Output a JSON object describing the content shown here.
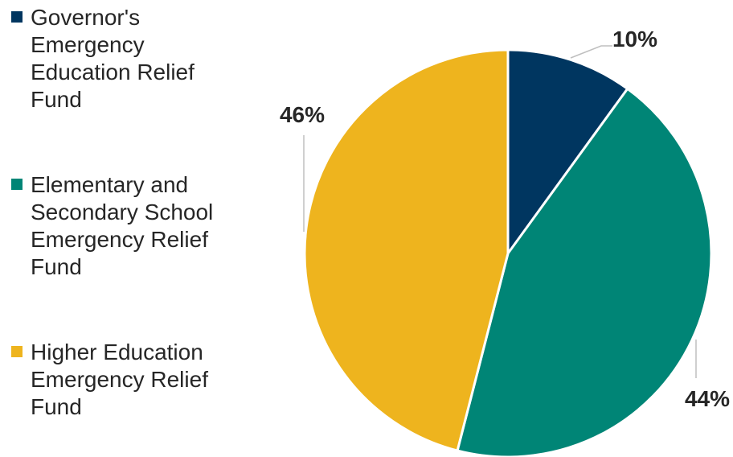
{
  "chart_data": {
    "type": "pie",
    "title": "",
    "legend_position": "left",
    "series": [
      {
        "name": "Governor's Emergency Education Relief Fund",
        "legend_lines": [
          "Governor's",
          "Emergency",
          "Education Relief",
          "Fund"
        ],
        "value": 10,
        "label": "10%",
        "color": "#003660"
      },
      {
        "name": "Elementary and Secondary School Emergency Relief Fund",
        "legend_lines": [
          "Elementary and",
          "Secondary School",
          "Emergency Relief",
          "Fund"
        ],
        "value": 44,
        "label": "44%",
        "color": "#008576"
      },
      {
        "name": "Higher Education Emergency Relief Fund",
        "legend_lines": [
          "Higher Education",
          "Emergency Relief",
          "Fund"
        ],
        "value": 46,
        "label": "46%",
        "color": "#EEB41E"
      }
    ]
  }
}
